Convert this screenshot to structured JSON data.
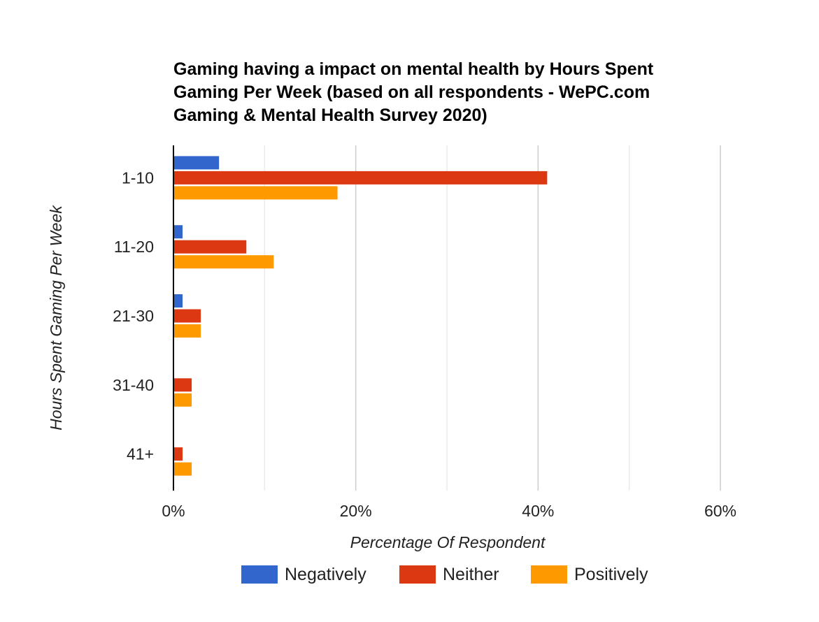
{
  "chart_data": {
    "type": "bar",
    "orientation": "horizontal",
    "title": [
      "Gaming having a impact on mental health by Hours Spent",
      "Gaming Per Week (based on all respondents - WePC.com",
      "Gaming & Mental Health Survey 2020)"
    ],
    "xlabel": "Percentage Of Respondent",
    "ylabel": "Hours Spent Gaming Per Week",
    "categories": [
      "1-10",
      "11-20",
      "21-30",
      "31-40",
      "41+"
    ],
    "series": [
      {
        "name": "Negatively",
        "color": "#3366cc",
        "values": [
          5,
          1,
          1,
          0,
          0
        ]
      },
      {
        "name": "Neither",
        "color": "#dc3912",
        "values": [
          41,
          8,
          3,
          2,
          1
        ]
      },
      {
        "name": "Positively",
        "color": "#ff9900",
        "values": [
          18,
          11,
          3,
          2,
          2
        ]
      }
    ],
    "xlim": [
      0,
      60
    ],
    "xticks": [
      0,
      20,
      40,
      60
    ],
    "xtick_labels": [
      "0%",
      "20%",
      "40%",
      "60%"
    ],
    "minor_gridlines": true,
    "grid": true,
    "legend_position": "bottom"
  }
}
